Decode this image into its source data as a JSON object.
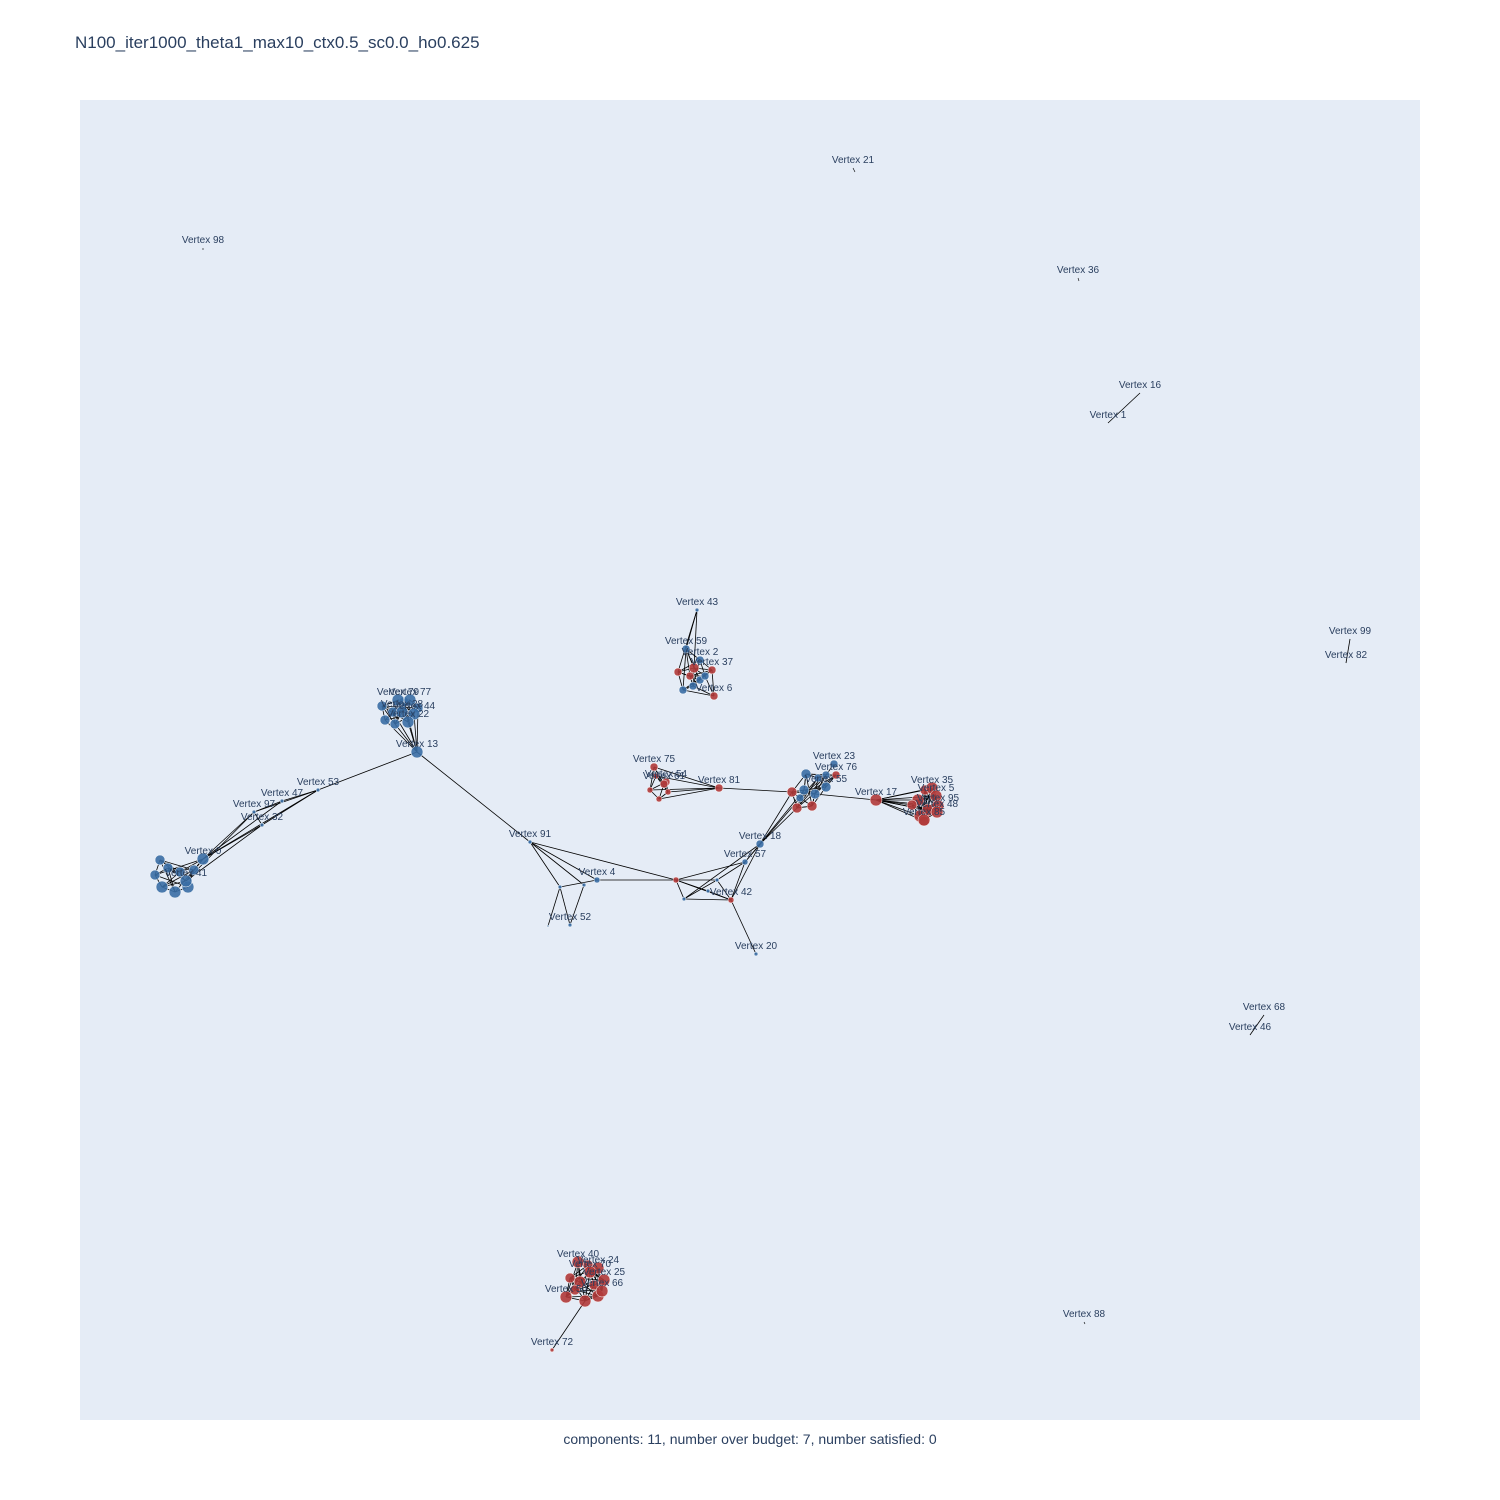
{
  "title": "N100_iter1000_theta1_max10_ctx0.5_sc0.0_ho0.625",
  "caption": "components: 11, number over budget: 7, number satisfied: 0",
  "colors": {
    "plot_bg": "#e5ecf6",
    "blue": "#3a6ea5",
    "red": "#b03a3a",
    "edge": "#000000",
    "label": "#2a3f5f"
  },
  "chart_data": {
    "type": "network",
    "nodes": [
      {
        "id": "v21",
        "label": "Vertex 21",
        "color": "blue"
      },
      {
        "id": "v98",
        "label": "Vertex 98",
        "color": "blue"
      },
      {
        "id": "v36",
        "label": "Vertex 36",
        "color": "blue"
      },
      {
        "id": "v16",
        "label": "Vertex 16",
        "color": "blue"
      },
      {
        "id": "v1",
        "label": "Vertex 1",
        "color": "blue"
      },
      {
        "id": "v99",
        "label": "Vertex 99",
        "color": "blue"
      },
      {
        "id": "v82",
        "label": "Vertex 82",
        "color": "blue"
      },
      {
        "id": "v68",
        "label": "Vertex 68",
        "color": "blue"
      },
      {
        "id": "v46",
        "label": "Vertex 46",
        "color": "blue"
      },
      {
        "id": "v88",
        "label": "Vertex 88",
        "color": "blue"
      },
      {
        "id": "v43",
        "label": "Vertex 43",
        "color": "blue"
      },
      {
        "id": "v59",
        "label": "Vertex 59",
        "color": "blue"
      },
      {
        "id": "v2",
        "label": "Vertex 2",
        "color": "blue"
      },
      {
        "id": "v37",
        "label": "Vertex 37",
        "color": "red"
      },
      {
        "id": "v6",
        "label": "Vertex 6",
        "color": "red"
      },
      {
        "id": "v79",
        "label": "Vertex 79",
        "color": "blue"
      },
      {
        "id": "v77",
        "label": "Vertex 77",
        "color": "blue"
      },
      {
        "id": "v28",
        "label": "Vertex 28",
        "color": "blue"
      },
      {
        "id": "v44",
        "label": "Vertex 44",
        "color": "blue"
      },
      {
        "id": "v22",
        "label": "Vertex 22",
        "color": "blue"
      },
      {
        "id": "v13",
        "label": "Vertex 13",
        "color": "blue"
      },
      {
        "id": "v53",
        "label": "Vertex 53",
        "color": "blue"
      },
      {
        "id": "v47",
        "label": "Vertex 47",
        "color": "blue"
      },
      {
        "id": "v97",
        "label": "Vertex 97",
        "color": "blue"
      },
      {
        "id": "v32",
        "label": "Vertex 32",
        "color": "blue"
      },
      {
        "id": "v0",
        "label": "Vertex 0",
        "color": "blue"
      },
      {
        "id": "v41",
        "label": "Vertex 41",
        "color": "blue"
      },
      {
        "id": "v75",
        "label": "Vertex 75",
        "color": "red"
      },
      {
        "id": "v54",
        "label": "Vertex 54",
        "color": "red"
      },
      {
        "id": "v61",
        "label": "Vertex 61",
        "color": "red"
      },
      {
        "id": "v81",
        "label": "Vertex 81",
        "color": "red"
      },
      {
        "id": "v23",
        "label": "Vertex 23",
        "color": "blue"
      },
      {
        "id": "v76",
        "label": "Vertex 76",
        "color": "red"
      },
      {
        "id": "v55",
        "label": "Vertex 55",
        "color": "blue"
      },
      {
        "id": "v18",
        "label": "Vertex 18",
        "color": "blue"
      },
      {
        "id": "v57",
        "label": "Vertex 57",
        "color": "blue"
      },
      {
        "id": "v17",
        "label": "Vertex 17",
        "color": "red"
      },
      {
        "id": "v35",
        "label": "Vertex 35",
        "color": "red"
      },
      {
        "id": "v5",
        "label": "Vertex 5",
        "color": "red"
      },
      {
        "id": "v95",
        "label": "Vertex 95",
        "color": "red"
      },
      {
        "id": "v48",
        "label": "Vertex 48",
        "color": "red"
      },
      {
        "id": "v85",
        "label": "Vertex 85",
        "color": "red"
      },
      {
        "id": "v91",
        "label": "Vertex 91",
        "color": "blue"
      },
      {
        "id": "v4",
        "label": "Vertex 4",
        "color": "blue"
      },
      {
        "id": "v52",
        "label": "Vertex 52",
        "color": "blue"
      },
      {
        "id": "v42",
        "label": "Vertex 42",
        "color": "red"
      },
      {
        "id": "v20",
        "label": "Vertex 20",
        "color": "blue"
      },
      {
        "id": "v40",
        "label": "Vertex 40",
        "color": "red"
      },
      {
        "id": "v24",
        "label": "Vertex 24",
        "color": "red"
      },
      {
        "id": "v70",
        "label": "Vertex 70",
        "color": "red"
      },
      {
        "id": "v25",
        "label": "Vertex 25",
        "color": "red"
      },
      {
        "id": "v66",
        "label": "Vertex 66",
        "color": "red"
      },
      {
        "id": "v50",
        "label": "Vertex 50",
        "color": "red"
      },
      {
        "id": "v72",
        "label": "Vertex 72",
        "color": "red"
      }
    ],
    "grid": false,
    "legend": "none"
  }
}
